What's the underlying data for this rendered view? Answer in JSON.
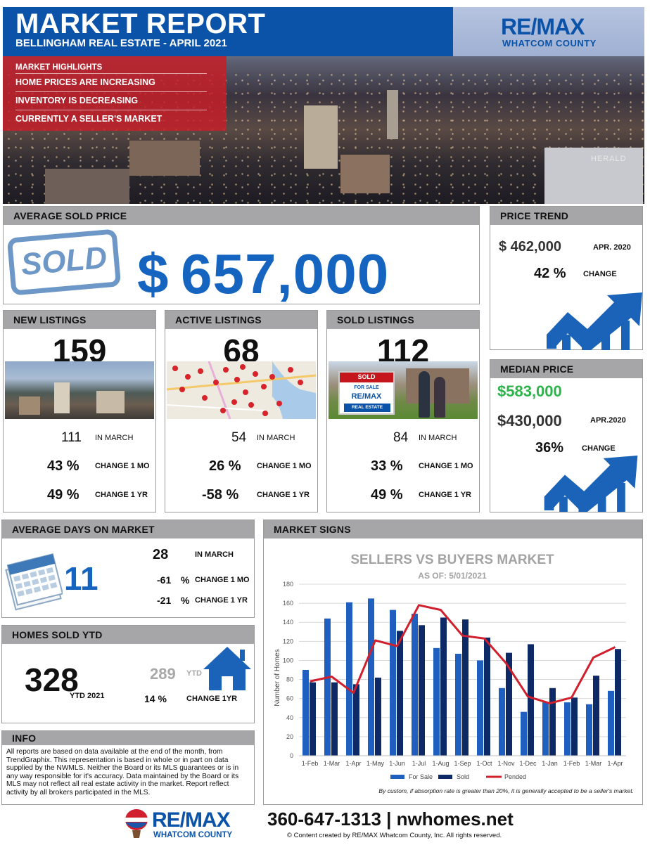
{
  "header": {
    "title": "MARKET REPORT",
    "subtitle": "BELLINGHAM REAL ESTATE -  APRIL 2021",
    "logo_main": "RE/MAX",
    "logo_sub": "WHATCOM COUNTY",
    "photo_caption": "HERALD"
  },
  "highlights": {
    "heading": "MARKET HIGHLIGHTS",
    "items": [
      "HOME PRICES ARE INCREASING",
      "INVENTORY IS DECREASING",
      "CURRENTLY A SELLER'S MARKET"
    ]
  },
  "avg_sold": {
    "title": "AVERAGE SOLD PRICE",
    "stamp": "SOLD",
    "currency": "$",
    "value": "657,000"
  },
  "price_trend": {
    "title": "PRICE TREND",
    "prev_value": "$ 462,000",
    "prev_date": "APR.  2020",
    "change_value": "42  %",
    "change_label": "CHANGE",
    "icon": "trend-up-chart-icon"
  },
  "median_price": {
    "title": "MEDIAN PRICE",
    "current": "$583,000",
    "prev_value": "$430,000",
    "prev_date": "APR.2020",
    "change_value": "36%",
    "change_label": "CHANGE",
    "icon": "trend-up-chart-icon",
    "current_color": "#2db34a"
  },
  "new_listings": {
    "title": "NEW LISTINGS",
    "value": "159",
    "prev_value": "111",
    "prev_label": "IN MARCH",
    "mo_value": "43  %",
    "mo_label": "CHANGE 1 MO",
    "yr_value": "49  %",
    "yr_label": "CHANGE 1 YR"
  },
  "active_listings": {
    "title": "ACTIVE LISTINGS",
    "value": "68",
    "prev_value": "54",
    "prev_label": "IN MARCH",
    "mo_value": "26  %",
    "mo_label": "CHANGE 1 MO",
    "yr_value": "-58  %",
    "yr_label": "CHANGE 1 YR"
  },
  "sold_listings": {
    "title": "SOLD LISTINGS",
    "value": "112",
    "prev_value": "84",
    "prev_label": "IN MARCH",
    "mo_value": "33  %",
    "mo_label": "CHANGE 1 MO",
    "yr_value": "49  %",
    "yr_label": "CHANGE 1 YR",
    "sign_top": "SOLD",
    "sign_mid": "FOR SALE",
    "sign_logo": "RE/MAX",
    "sign_bottom": "REAL ESTATE"
  },
  "days_on_market": {
    "title": "AVERAGE DAYS ON MARKET",
    "value": "11",
    "march_value": "28",
    "march_label": "IN MARCH",
    "mo_value": "-61",
    "mo_unit": "%",
    "mo_label": "CHANGE 1 MO",
    "yr_value": "-21",
    "yr_unit": "%",
    "yr_label": "CHANGE 1 YR",
    "icon": "calendar-icon"
  },
  "homes_sold_ytd": {
    "title": "HOMES SOLD YTD",
    "value": "328",
    "value_label": "YTD 2021",
    "prev_value": "289",
    "prev_label": "YTD",
    "change_value": "14  %",
    "change_label": "CHANGE 1YR",
    "icon": "house-icon"
  },
  "info": {
    "title": "INFO",
    "text": "All reports are based on data available at the end of the month, from TrendGraphix. This representation is based in whole or in part on data supplied by the NWMLS. Neither the Board or its MLS guarantees or is in any way responsible for it's accuracy. Data maintained by the Board or its MLS may not reflect all real estate activity in the market. Report reflect activity by all brokers participated in the MLS."
  },
  "market_signs": {
    "title": "MARKET SIGNS",
    "footnote": "By custom, if absorption rate is greater than 20%, it is generally accepted to be a seller's market."
  },
  "chart_data": {
    "type": "bar",
    "title": "SELLERS VS BUYERS MARKET",
    "subtitle": "AS OF: 5/01/2021",
    "ylabel": "Number of Homes",
    "xlabel": "",
    "ylim": [
      0,
      180
    ],
    "yticks": [
      0,
      20,
      40,
      60,
      80,
      100,
      120,
      140,
      160,
      180
    ],
    "categories": [
      "1-Feb",
      "1-Mar",
      "1-Apr",
      "1-May",
      "1-Jun",
      "1-Jul",
      "1-Aug",
      "1-Sep",
      "1-Oct",
      "1-Nov",
      "1-Dec",
      "1-Jan",
      "1-Feb",
      "1-Mar",
      "1-Apr"
    ],
    "series": [
      {
        "name": "For Sale",
        "type": "bar",
        "color": "#1f5fbf",
        "values": [
          90,
          144,
          161,
          165,
          153,
          149,
          113,
          107,
          100,
          71,
          46,
          56,
          56,
          54,
          68
        ]
      },
      {
        "name": "Sold",
        "type": "bar",
        "color": "#0d2a66",
        "values": [
          77,
          77,
          75,
          82,
          131,
          137,
          145,
          143,
          124,
          108,
          117,
          71,
          61,
          84,
          112
        ]
      },
      {
        "name": "Pended",
        "type": "line",
        "color": "#d0202e",
        "values": [
          78,
          83,
          66,
          121,
          115,
          158,
          153,
          126,
          123,
          97,
          62,
          55,
          61,
          103,
          114
        ]
      }
    ],
    "legend": "bottom",
    "grid": true
  },
  "footer": {
    "logo_main": "RE/MAX",
    "logo_sub": "WHATCOM COUNTY",
    "contact": "360-647-1313 | nwhomes.net",
    "copyright": "© Content created by RE/MAX Whatcom County, Inc. All rights reserved."
  }
}
